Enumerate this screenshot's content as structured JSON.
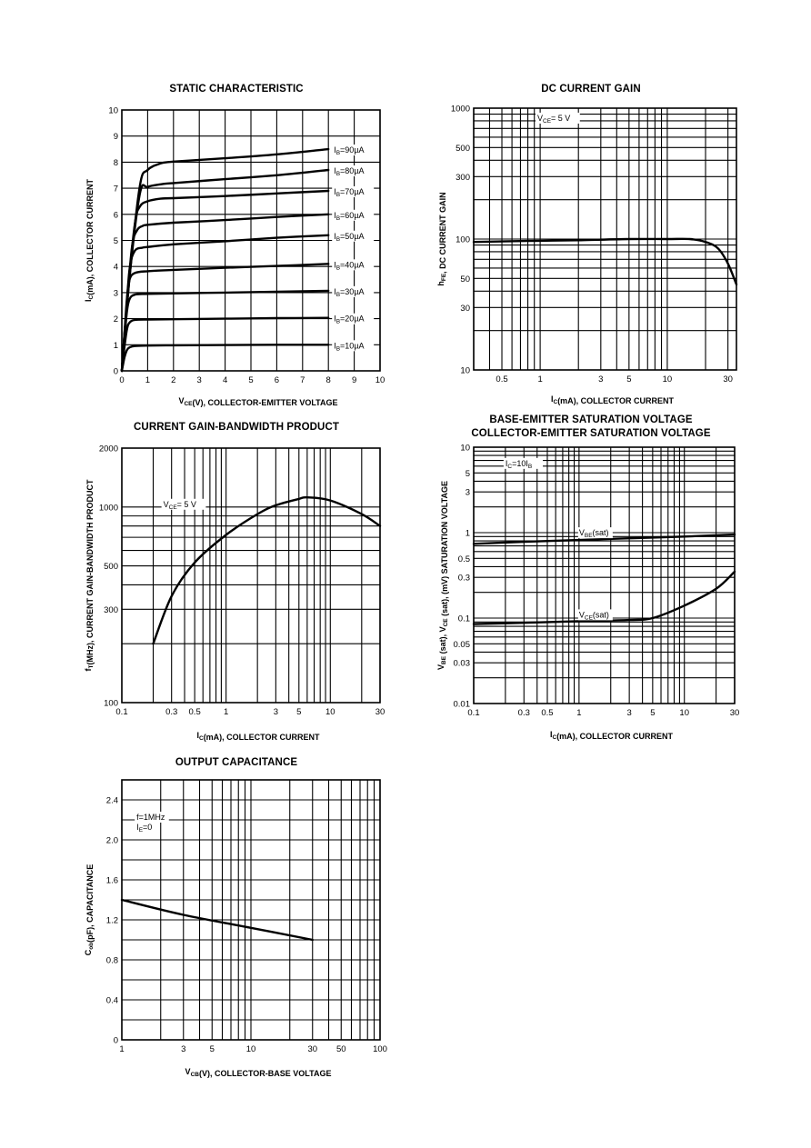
{
  "chart_data": [
    {
      "id": "static",
      "type": "line",
      "title": "STATIC CHARACTERISTIC",
      "xlabel": "V_CE(V), COLLECTOR-EMITTER VOLTAGE",
      "ylabel": "I_C(mA), COLLECTOR CURRENT",
      "xlim": [
        0,
        10
      ],
      "ylim": [
        0,
        10
      ],
      "x_scale": "linear",
      "y_scale": "linear",
      "xticks": [
        0,
        1,
        2,
        3,
        4,
        5,
        6,
        7,
        8,
        9,
        10
      ],
      "yticks": [
        0,
        1,
        2,
        3,
        4,
        5,
        6,
        7,
        8,
        9,
        10
      ],
      "grid": true,
      "series": [
        {
          "name": "I_B=10µA",
          "label": "IB=10µA",
          "label_html": "I<tspan class='sub' dy='2'>B</tspan><tspan dy='-2'>=10µA</tspan>",
          "values": [
            [
              0,
              0
            ],
            [
              0.1,
              0.5
            ],
            [
              0.2,
              0.8
            ],
            [
              0.3,
              0.9
            ],
            [
              0.5,
              0.95
            ],
            [
              1,
              0.97
            ],
            [
              2,
              0.98
            ],
            [
              4,
              0.99
            ],
            [
              6,
              1.0
            ],
            [
              8,
              1.0
            ]
          ]
        },
        {
          "name": "I_B=20µA",
          "label": "IB=20µA",
          "values": [
            [
              0,
              0
            ],
            [
              0.1,
              0.9
            ],
            [
              0.2,
              1.6
            ],
            [
              0.3,
              1.85
            ],
            [
              0.5,
              1.95
            ],
            [
              1,
              1.97
            ],
            [
              2,
              1.98
            ],
            [
              4,
              2.0
            ],
            [
              6,
              2.02
            ],
            [
              8,
              2.03
            ]
          ]
        },
        {
          "name": "I_B=30µA",
          "label": "IB=30µA",
          "values": [
            [
              0,
              0
            ],
            [
              0.1,
              1.2
            ],
            [
              0.2,
              2.3
            ],
            [
              0.3,
              2.75
            ],
            [
              0.5,
              2.92
            ],
            [
              1,
              2.95
            ],
            [
              2,
              2.97
            ],
            [
              4,
              3.0
            ],
            [
              6,
              3.03
            ],
            [
              8,
              3.07
            ]
          ]
        },
        {
          "name": "I_B=40µA",
          "label": "IB=40µA",
          "values": [
            [
              0,
              0
            ],
            [
              0.1,
              1.4
            ],
            [
              0.2,
              2.8
            ],
            [
              0.3,
              3.5
            ],
            [
              0.5,
              3.75
            ],
            [
              1,
              3.82
            ],
            [
              2,
              3.87
            ],
            [
              4,
              3.95
            ],
            [
              6,
              4.02
            ],
            [
              8,
              4.1
            ]
          ]
        },
        {
          "name": "I_B=50µA",
          "label": "IB=50µA",
          "values": [
            [
              0,
              0
            ],
            [
              0.15,
              2.0
            ],
            [
              0.3,
              3.9
            ],
            [
              0.5,
              4.6
            ],
            [
              0.8,
              4.72
            ],
            [
              1,
              4.75
            ],
            [
              2,
              4.85
            ],
            [
              4,
              4.97
            ],
            [
              6,
              5.1
            ],
            [
              8,
              5.2
            ]
          ]
        },
        {
          "name": "I_B=60µA",
          "label": "IB=60µA",
          "values": [
            [
              0,
              0
            ],
            [
              0.2,
              2.6
            ],
            [
              0.4,
              4.8
            ],
            [
              0.6,
              5.4
            ],
            [
              0.8,
              5.55
            ],
            [
              1,
              5.6
            ],
            [
              2,
              5.68
            ],
            [
              4,
              5.78
            ],
            [
              6,
              5.9
            ],
            [
              8,
              6.0
            ]
          ]
        },
        {
          "name": "I_B=70µA",
          "label": "IB=70µA",
          "values": [
            [
              0,
              0
            ],
            [
              0.2,
              2.6
            ],
            [
              0.5,
              5.6
            ],
            [
              0.7,
              6.3
            ],
            [
              1,
              6.5
            ],
            [
              1.5,
              6.6
            ],
            [
              2,
              6.62
            ],
            [
              4,
              6.7
            ],
            [
              6,
              6.8
            ],
            [
              8,
              6.9
            ]
          ]
        },
        {
          "name": "I_B=80µA",
          "label": "IB=80µA",
          "values": [
            [
              0,
              0
            ],
            [
              0.3,
              3.6
            ],
            [
              0.7,
              6.8
            ],
            [
              1,
              7.05
            ],
            [
              1.5,
              7.15
            ],
            [
              2,
              7.2
            ],
            [
              4,
              7.35
            ],
            [
              6,
              7.5
            ],
            [
              8,
              7.7
            ]
          ]
        },
        {
          "name": "I_B=90µA",
          "label": "IB=90µA",
          "values": [
            [
              0,
              0
            ],
            [
              0.3,
              3.6
            ],
            [
              0.7,
              7.1
            ],
            [
              1,
              7.7
            ],
            [
              1.5,
              7.95
            ],
            [
              2,
              8.02
            ],
            [
              4,
              8.15
            ],
            [
              6,
              8.3
            ],
            [
              8,
              8.5
            ]
          ]
        }
      ]
    },
    {
      "id": "dcgain",
      "type": "line",
      "title": "DC CURRENT GAIN",
      "xlabel": "I_C(mA), COLLECTOR CURRENT",
      "ylabel": "h_FE, DC CURRENT GAIN",
      "xlim": [
        0.3,
        35
      ],
      "ylim": [
        10,
        1000
      ],
      "x_scale": "log",
      "y_scale": "log",
      "xticks": [
        0.5,
        1,
        3,
        5,
        10,
        30
      ],
      "yticks": [
        10,
        30,
        50,
        100,
        300,
        500,
        1000
      ],
      "grid": true,
      "annotations": [
        {
          "text": "VCE= 5 V",
          "x": 0.95,
          "y": 800
        }
      ],
      "series": [
        {
          "name": "hFE",
          "values": [
            [
              0.3,
              95
            ],
            [
              0.5,
              96
            ],
            [
              1,
              97
            ],
            [
              2,
              98
            ],
            [
              5,
              100
            ],
            [
              10,
              100
            ],
            [
              15,
              100
            ],
            [
              20,
              95
            ],
            [
              25,
              85
            ],
            [
              30,
              65
            ],
            [
              35,
              45
            ]
          ]
        }
      ]
    },
    {
      "id": "fT",
      "type": "line",
      "title": "CURRENT GAIN-BANDWIDTH PRODUCT",
      "xlabel": "I_C(mA), COLLECTOR CURRENT",
      "ylabel": "f_T(MHz), CURRENT GAIN-BANDWIDTH PRODUCT",
      "xlim": [
        0.1,
        30
      ],
      "ylim": [
        100,
        2000
      ],
      "x_scale": "log",
      "y_scale": "log",
      "xticks": [
        0.1,
        0.3,
        0.5,
        1,
        3,
        5,
        10,
        30
      ],
      "yticks": [
        100,
        300,
        500,
        1000,
        2000
      ],
      "grid": true,
      "annotations": [
        {
          "text": "VCE= 5 V",
          "x": 0.25,
          "y": 1000
        }
      ],
      "series": [
        {
          "name": "fT",
          "values": [
            [
              0.2,
              200
            ],
            [
              0.3,
              350
            ],
            [
              0.5,
              520
            ],
            [
              1,
              720
            ],
            [
              2,
              920
            ],
            [
              3,
              1020
            ],
            [
              5,
              1100
            ],
            [
              6,
              1120
            ],
            [
              10,
              1080
            ],
            [
              20,
              920
            ],
            [
              30,
              800
            ]
          ]
        }
      ]
    },
    {
      "id": "sat",
      "type": "line",
      "title": "BASE-EMITTER SATURATION VOLTAGE",
      "subtitle": "COLLECTOR-EMITTER SATURATION VOLTAGE",
      "xlabel": "I_C(mA), COLLECTOR CURRENT",
      "ylabel": "V_BE (sat), V_CE (sat), (mV) SATURATION VOLTAGE",
      "xlim": [
        0.1,
        30
      ],
      "ylim": [
        0.01,
        10
      ],
      "x_scale": "log",
      "y_scale": "log",
      "xticks": [
        0.1,
        0.3,
        0.5,
        1,
        3,
        5,
        10,
        30
      ],
      "yticks": [
        0.01,
        0.03,
        0.05,
        0.1,
        0.3,
        0.5,
        1,
        3,
        5,
        10
      ],
      "grid": true,
      "annotations": [
        {
          "text": "IC=10IB",
          "x": 0.2,
          "y": 6
        }
      ],
      "series": [
        {
          "name": "VBE(sat)",
          "label": "VBE(sat)",
          "values": [
            [
              0.1,
              0.74
            ],
            [
              0.3,
              0.78
            ],
            [
              1,
              0.82
            ],
            [
              3,
              0.86
            ],
            [
              10,
              0.9
            ],
            [
              30,
              0.95
            ]
          ]
        },
        {
          "name": "VCE(sat)",
          "label": "VCE(sat)",
          "values": [
            [
              0.1,
              0.085
            ],
            [
              0.3,
              0.088
            ],
            [
              1,
              0.092
            ],
            [
              3,
              0.095
            ],
            [
              5,
              0.1
            ],
            [
              10,
              0.14
            ],
            [
              20,
              0.22
            ],
            [
              30,
              0.35
            ]
          ]
        }
      ]
    },
    {
      "id": "cob",
      "type": "line",
      "title": "OUTPUT CAPACITANCE",
      "xlabel": "V_CB(V), COLLECTOR-BASE VOLTAGE",
      "ylabel": "C_ob(pF), CAPACITANCE",
      "xlim": [
        1,
        100
      ],
      "ylim": [
        0,
        2.6
      ],
      "x_scale": "log",
      "y_scale": "linear",
      "xticks": [
        1,
        3,
        5,
        10,
        30,
        50,
        100
      ],
      "yticks": [
        0,
        0.4,
        0.8,
        1.2,
        1.6,
        2.0,
        2.4
      ],
      "grid": true,
      "annotations": [
        {
          "text": "f=1MHz",
          "x": 1.3,
          "y": 2.2
        },
        {
          "text": "IE=0",
          "x": 1.3,
          "y": 2.1
        }
      ],
      "series": [
        {
          "name": "Cob",
          "values": [
            [
              1,
              1.4
            ],
            [
              3,
              1.25
            ],
            [
              10,
              1.12
            ],
            [
              30,
              1.0
            ]
          ]
        }
      ]
    }
  ]
}
